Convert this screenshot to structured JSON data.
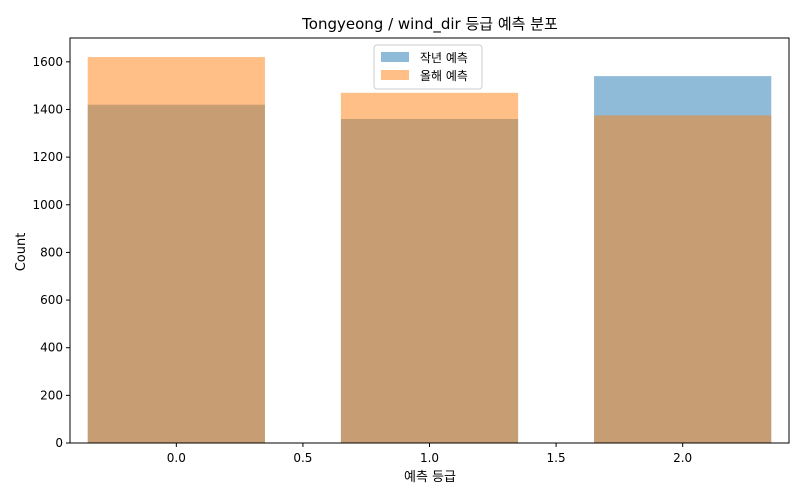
{
  "chart_data": {
    "type": "bar",
    "title": "Tongyeong / wind_dir 등급 예측 분포",
    "xlabel": "예측 등급",
    "ylabel": "Count",
    "x": [
      0,
      1,
      2
    ],
    "xlim": [
      -0.42,
      2.42
    ],
    "ylim": [
      0,
      1700
    ],
    "xticks": [
      0.0,
      0.5,
      1.0,
      1.5,
      2.0
    ],
    "xtick_labels": [
      "0.0",
      "0.5",
      "1.0",
      "1.5",
      "2.0"
    ],
    "yticks": [
      0,
      200,
      400,
      600,
      800,
      1000,
      1200,
      1400,
      1600
    ],
    "ytick_labels": [
      "0",
      "200",
      "400",
      "600",
      "800",
      "1000",
      "1200",
      "1400",
      "1600"
    ],
    "bar_width": 0.7,
    "grid": false,
    "legend": "upper center",
    "series": [
      {
        "name": "작년 예측",
        "values": [
          1420,
          1360,
          1540
        ],
        "color": "#1f77b4",
        "opacity": 0.5
      },
      {
        "name": "올해 예측",
        "values": [
          1620,
          1470,
          1375
        ],
        "color": "#ff7f0e",
        "opacity": 0.5
      }
    ]
  }
}
